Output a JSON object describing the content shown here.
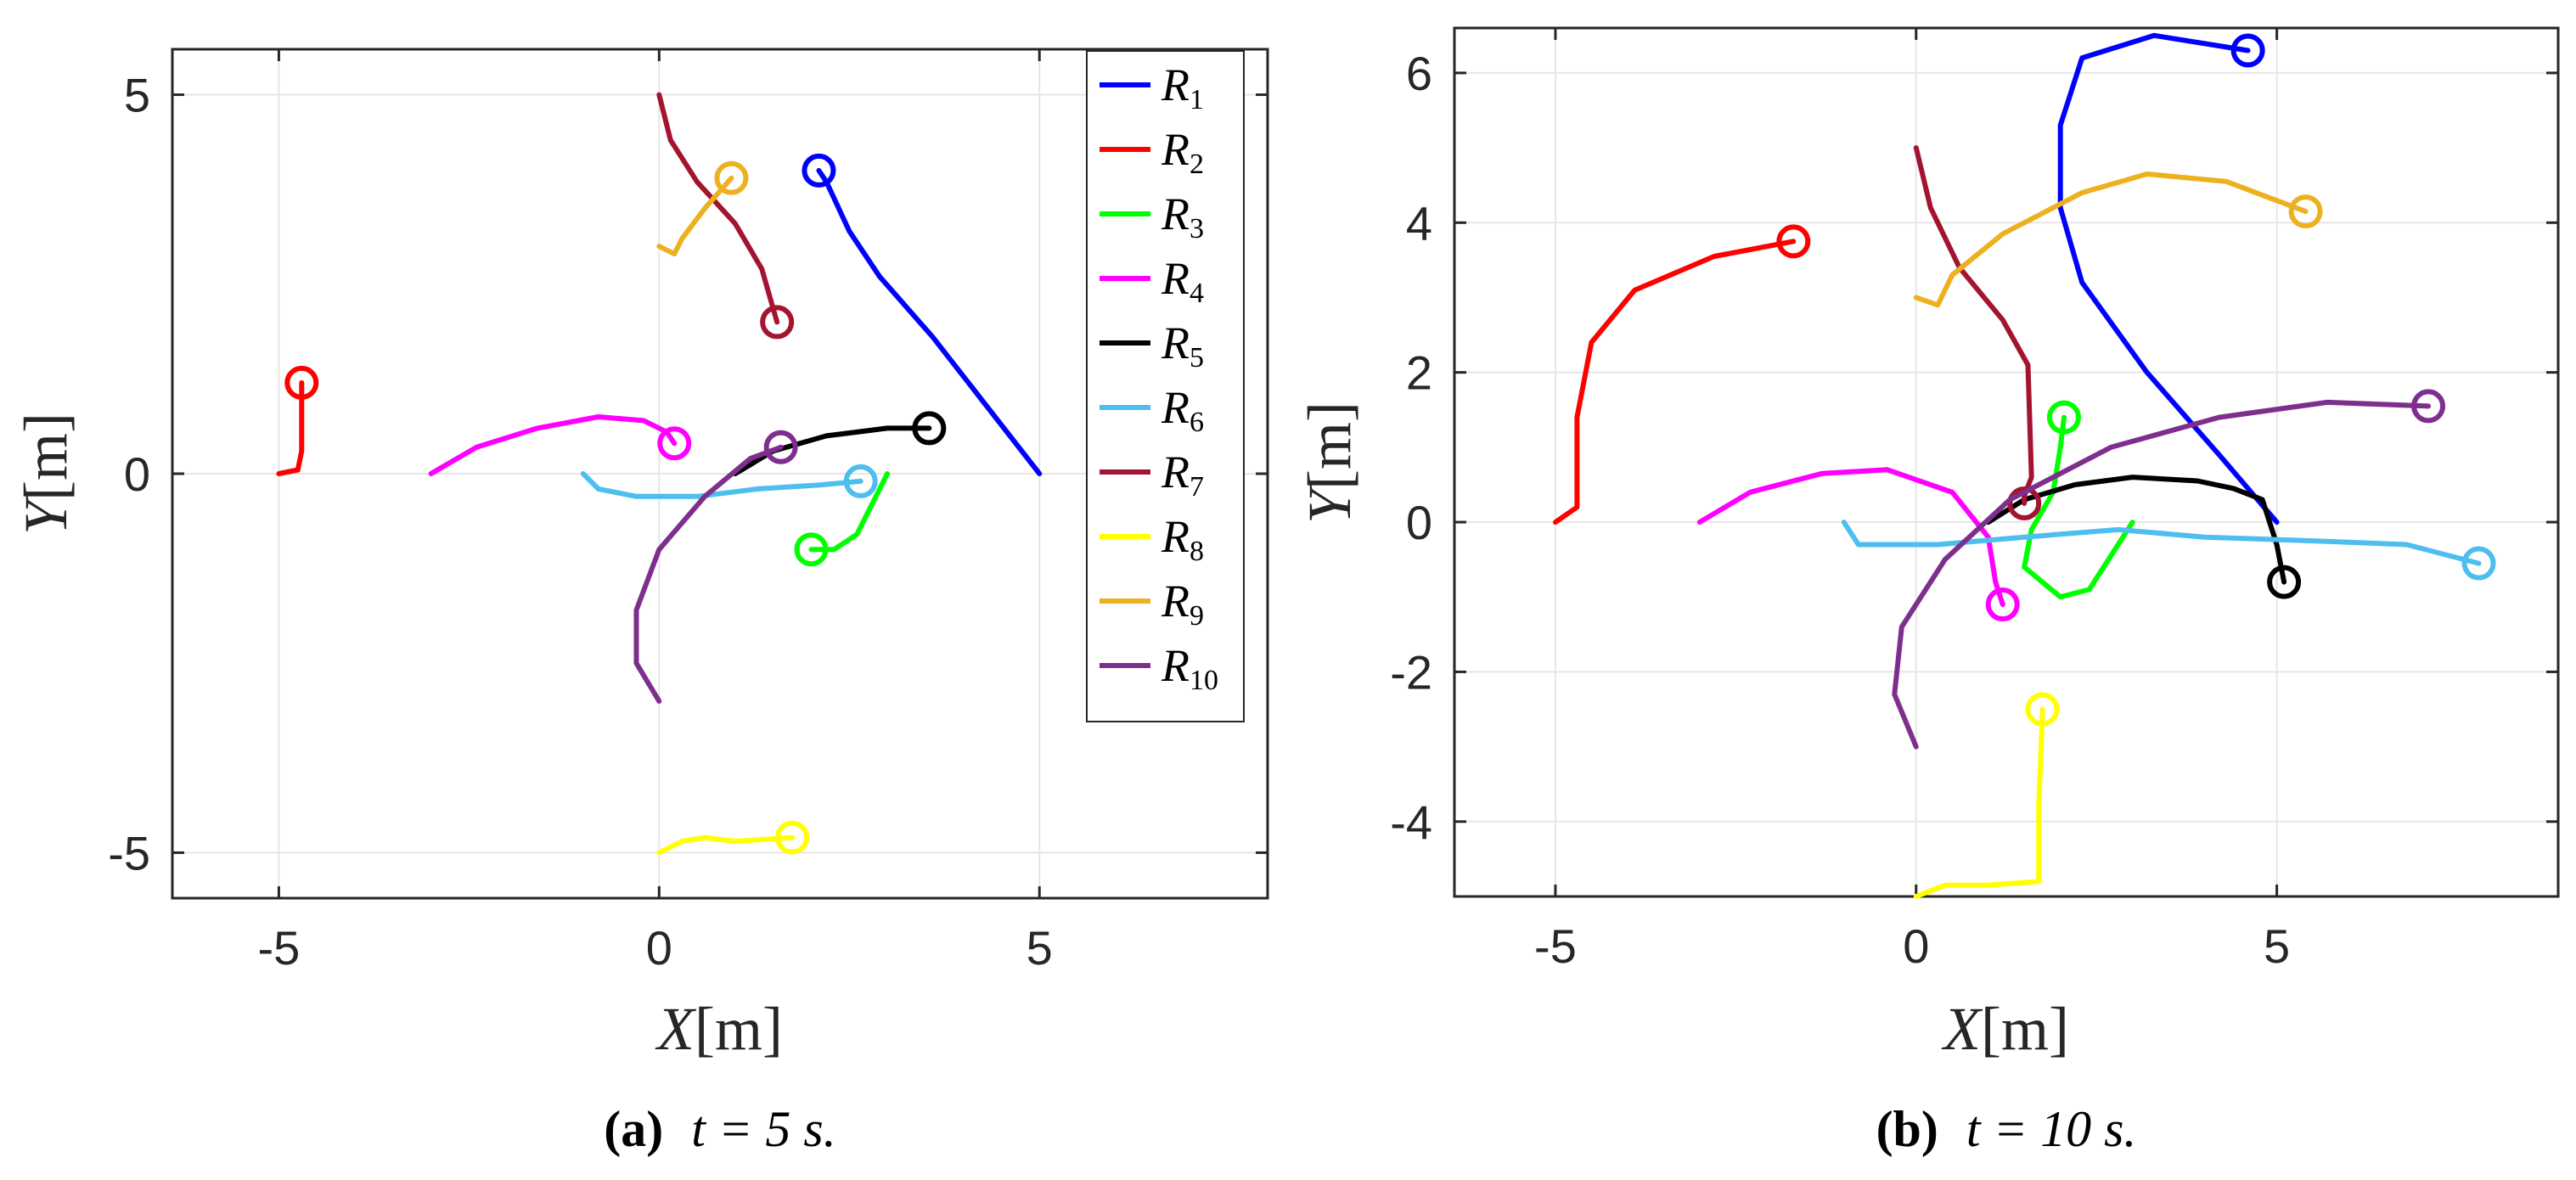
{
  "chart_data": [
    {
      "type": "line",
      "panel": "a",
      "caption_letter": "(a)",
      "caption_time": "t = 5 s.",
      "xlabel": "X[m]",
      "ylabel": "Y[m]",
      "xlim": [
        -6.4,
        8.0
      ],
      "ylim": [
        -5.6,
        5.6
      ],
      "xticks": [
        -5,
        0,
        5
      ],
      "xtick_labels": [
        "-5",
        "0",
        "5"
      ],
      "yticks": [
        -5,
        0,
        5
      ],
      "ytick_labels": [
        "-5",
        "0",
        "5"
      ],
      "grid": true,
      "legend": "top-right",
      "series": [
        {
          "name": "R1",
          "sub": "1",
          "color": "#0000ff",
          "points": [
            [
              5.0,
              0.0
            ],
            [
              4.3,
              0.9
            ],
            [
              3.6,
              1.8
            ],
            [
              2.9,
              2.6
            ],
            [
              2.5,
              3.2
            ],
            [
              2.2,
              3.85
            ],
            [
              2.1,
              4.0
            ]
          ]
        },
        {
          "name": "R2",
          "sub": "2",
          "color": "#ff0000",
          "points": [
            [
              -5.0,
              0.0
            ],
            [
              -4.75,
              0.05
            ],
            [
              -4.7,
              0.3
            ],
            [
              -4.7,
              0.9
            ],
            [
              -4.7,
              1.2
            ]
          ]
        },
        {
          "name": "R3",
          "sub": "3",
          "color": "#00ff00",
          "points": [
            [
              3.0,
              0.0
            ],
            [
              2.8,
              -0.4
            ],
            [
              2.6,
              -0.8
            ],
            [
              2.3,
              -1.0
            ],
            [
              2.0,
              -1.0
            ]
          ]
        },
        {
          "name": "R4",
          "sub": "4",
          "color": "#ff00ff",
          "points": [
            [
              -3.0,
              0.0
            ],
            [
              -2.4,
              0.35
            ],
            [
              -1.6,
              0.6
            ],
            [
              -0.8,
              0.75
            ],
            [
              -0.2,
              0.7
            ],
            [
              0.1,
              0.55
            ],
            [
              0.2,
              0.4
            ]
          ]
        },
        {
          "name": "R5",
          "sub": "5",
          "color": "#000000",
          "points": [
            [
              1.0,
              0.0
            ],
            [
              1.5,
              0.3
            ],
            [
              2.2,
              0.5
            ],
            [
              3.0,
              0.6
            ],
            [
              3.55,
              0.6
            ]
          ]
        },
        {
          "name": "R6",
          "sub": "6",
          "color": "#4dbeee",
          "points": [
            [
              -1.0,
              0.0
            ],
            [
              -0.8,
              -0.2
            ],
            [
              -0.3,
              -0.3
            ],
            [
              0.5,
              -0.3
            ],
            [
              1.3,
              -0.2
            ],
            [
              2.1,
              -0.15
            ],
            [
              2.65,
              -0.1
            ]
          ]
        },
        {
          "name": "R7",
          "sub": "7",
          "color": "#a2142f",
          "points": [
            [
              0.0,
              5.0
            ],
            [
              0.15,
              4.4
            ],
            [
              0.5,
              3.85
            ],
            [
              1.0,
              3.3
            ],
            [
              1.35,
              2.7
            ],
            [
              1.55,
              2.0
            ]
          ]
        },
        {
          "name": "R8",
          "sub": "8",
          "color": "#ffff00",
          "points": [
            [
              0.0,
              -5.0
            ],
            [
              0.3,
              -4.85
            ],
            [
              0.6,
              -4.8
            ],
            [
              1.0,
              -4.85
            ],
            [
              1.75,
              -4.8
            ]
          ]
        },
        {
          "name": "R9",
          "sub": "9",
          "color": "#edb120",
          "points": [
            [
              0.0,
              3.0
            ],
            [
              0.2,
              2.9
            ],
            [
              0.3,
              3.1
            ],
            [
              0.6,
              3.5
            ],
            [
              0.95,
              3.9
            ]
          ]
        },
        {
          "name": "R10",
          "sub": "10",
          "color": "#7e2f8e",
          "points": [
            [
              0.0,
              -3.0
            ],
            [
              -0.3,
              -2.5
            ],
            [
              -0.3,
              -1.8
            ],
            [
              0.0,
              -1.0
            ],
            [
              0.6,
              -0.3
            ],
            [
              1.2,
              0.2
            ],
            [
              1.6,
              0.35
            ]
          ]
        }
      ]
    },
    {
      "type": "line",
      "panel": "b",
      "caption_letter": "(b)",
      "caption_time": "t = 10 s.",
      "xlabel": "X[m]",
      "ylabel": "Y[m]",
      "xlim": [
        -6.4,
        8.9
      ],
      "ylim": [
        -5.0,
        6.6
      ],
      "xticks": [
        -5,
        0,
        5
      ],
      "xtick_labels": [
        "-5",
        "0",
        "5"
      ],
      "yticks": [
        -4,
        -2,
        0,
        2,
        4,
        6
      ],
      "ytick_labels": [
        "-4",
        "-2",
        "0",
        "2",
        "4",
        "6"
      ],
      "grid": true,
      "legend": "none",
      "series": [
        {
          "name": "R1",
          "color": "#0000ff",
          "points": [
            [
              5.0,
              0.0
            ],
            [
              4.2,
              0.9
            ],
            [
              3.2,
              2.0
            ],
            [
              2.3,
              3.2
            ],
            [
              2.0,
              4.2
            ],
            [
              2.0,
              5.3
            ],
            [
              2.3,
              6.2
            ],
            [
              3.3,
              6.5
            ],
            [
              4.6,
              6.3
            ]
          ]
        },
        {
          "name": "R2",
          "color": "#ff0000",
          "points": [
            [
              -5.0,
              0.0
            ],
            [
              -4.7,
              0.2
            ],
            [
              -4.7,
              1.4
            ],
            [
              -4.5,
              2.4
            ],
            [
              -3.9,
              3.1
            ],
            [
              -2.8,
              3.55
            ],
            [
              -1.7,
              3.75
            ]
          ]
        },
        {
          "name": "R3",
          "color": "#00ff00",
          "points": [
            [
              3.0,
              0.0
            ],
            [
              2.4,
              -0.9
            ],
            [
              2.0,
              -1.0
            ],
            [
              1.5,
              -0.6
            ],
            [
              1.6,
              -0.1
            ],
            [
              1.9,
              0.4
            ],
            [
              2.0,
              1.0
            ],
            [
              2.05,
              1.4
            ]
          ]
        },
        {
          "name": "R4",
          "color": "#ff00ff",
          "points": [
            [
              -3.0,
              0.0
            ],
            [
              -2.3,
              0.4
            ],
            [
              -1.3,
              0.65
            ],
            [
              -0.4,
              0.7
            ],
            [
              0.5,
              0.4
            ],
            [
              1.0,
              -0.2
            ],
            [
              1.1,
              -0.8
            ],
            [
              1.2,
              -1.1
            ]
          ]
        },
        {
          "name": "R5",
          "color": "#000000",
          "points": [
            [
              1.0,
              0.0
            ],
            [
              1.5,
              0.3
            ],
            [
              2.2,
              0.5
            ],
            [
              3.0,
              0.6
            ],
            [
              3.9,
              0.55
            ],
            [
              4.4,
              0.45
            ],
            [
              4.8,
              0.3
            ],
            [
              5.0,
              -0.3
            ],
            [
              5.1,
              -0.8
            ]
          ]
        },
        {
          "name": "R6",
          "color": "#4dbeee",
          "points": [
            [
              -1.0,
              0.0
            ],
            [
              -0.8,
              -0.3
            ],
            [
              0.3,
              -0.3
            ],
            [
              1.5,
              -0.2
            ],
            [
              2.8,
              -0.1
            ],
            [
              4.0,
              -0.2
            ],
            [
              5.5,
              -0.25
            ],
            [
              6.8,
              -0.3
            ],
            [
              7.8,
              -0.55
            ]
          ]
        },
        {
          "name": "R7",
          "color": "#a2142f",
          "points": [
            [
              0.0,
              5.0
            ],
            [
              0.2,
              4.2
            ],
            [
              0.6,
              3.4
            ],
            [
              1.2,
              2.7
            ],
            [
              1.55,
              2.1
            ],
            [
              1.6,
              0.6
            ],
            [
              1.5,
              0.35
            ],
            [
              1.5,
              0.25
            ]
          ]
        },
        {
          "name": "R8",
          "color": "#ffff00",
          "points": [
            [
              0.0,
              -5.0
            ],
            [
              0.4,
              -4.85
            ],
            [
              1.0,
              -4.85
            ],
            [
              1.7,
              -4.8
            ],
            [
              1.7,
              -3.8
            ],
            [
              1.75,
              -2.6
            ],
            [
              1.75,
              -2.5
            ]
          ]
        },
        {
          "name": "R9",
          "color": "#edb120",
          "points": [
            [
              0.0,
              3.0
            ],
            [
              0.3,
              2.9
            ],
            [
              0.5,
              3.3
            ],
            [
              1.2,
              3.85
            ],
            [
              2.3,
              4.4
            ],
            [
              3.2,
              4.65
            ],
            [
              4.3,
              4.55
            ],
            [
              5.4,
              4.15
            ]
          ]
        },
        {
          "name": "R10",
          "color": "#7e2f8e",
          "points": [
            [
              0.0,
              -3.0
            ],
            [
              -0.3,
              -2.3
            ],
            [
              -0.2,
              -1.4
            ],
            [
              0.4,
              -0.5
            ],
            [
              1.3,
              0.3
            ],
            [
              2.7,
              1.0
            ],
            [
              4.2,
              1.4
            ],
            [
              5.7,
              1.6
            ],
            [
              7.1,
              1.55
            ]
          ]
        }
      ]
    }
  ]
}
